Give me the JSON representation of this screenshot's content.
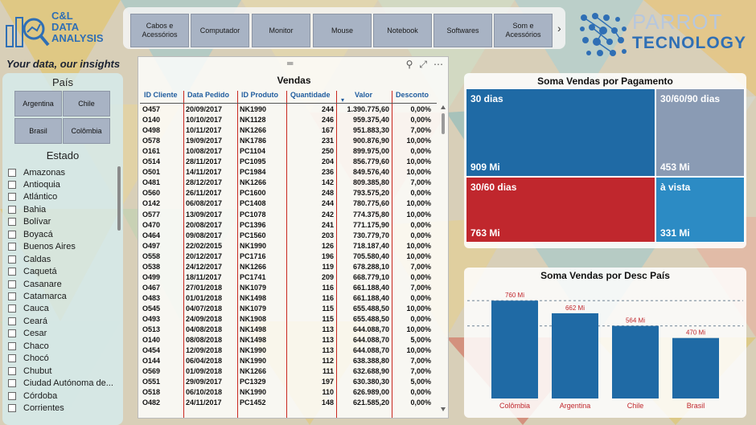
{
  "logo": {
    "lines": [
      "C&L",
      "DATA",
      "ANALYSIS"
    ],
    "tagline": "Your data, our insights"
  },
  "nav": {
    "items": [
      "Cabos e Acessórios",
      "Computador",
      "Monitor",
      "Mouse",
      "Notebook",
      "Softwares",
      "Som e Acessórios"
    ],
    "next_icon": "chevron-right-icon"
  },
  "brand": {
    "line1": "PARROT",
    "line2": "TECNOLOGY"
  },
  "slicer_pais": {
    "title": "País",
    "options": [
      "Argentina",
      "Chile",
      "Brasil",
      "Colômbia"
    ]
  },
  "slicer_estado": {
    "title": "Estado",
    "items": [
      "Amazonas",
      "Antioquia",
      "Atlántico",
      "Bahia",
      "Bolívar",
      "Boyacá",
      "Buenos Aires",
      "Caldas",
      "Caquetá",
      "Casanare",
      "Catamarca",
      "Cauca",
      "Ceará",
      "Cesar",
      "Chaco",
      "Chocó",
      "Chubut",
      "Ciudad Autónoma de...",
      "Córdoba",
      "Corrientes"
    ]
  },
  "vendas": {
    "title": "Vendas",
    "columns": [
      "ID Cliente",
      "Data Pedido",
      "ID Produto",
      "Quantidade",
      "Valor",
      "Desconto"
    ],
    "rows": [
      [
        "O457",
        "20/09/2017",
        "NK1990",
        "244",
        "1.390.775,60",
        "0,00%"
      ],
      [
        "O140",
        "10/10/2017",
        "NK1128",
        "246",
        "959.375,40",
        "0,00%"
      ],
      [
        "O498",
        "10/11/2017",
        "NK1266",
        "167",
        "951.883,30",
        "7,00%"
      ],
      [
        "O578",
        "19/09/2017",
        "NK1786",
        "231",
        "900.876,90",
        "10,00%"
      ],
      [
        "O161",
        "10/08/2017",
        "PC1104",
        "250",
        "899.975,00",
        "0,00%"
      ],
      [
        "O514",
        "28/11/2017",
        "PC1095",
        "204",
        "856.779,60",
        "10,00%"
      ],
      [
        "O501",
        "14/11/2017",
        "PC1984",
        "236",
        "849.576,40",
        "10,00%"
      ],
      [
        "O481",
        "28/12/2017",
        "NK1266",
        "142",
        "809.385,80",
        "7,00%"
      ],
      [
        "O560",
        "26/11/2017",
        "PC1600",
        "248",
        "793.575,20",
        "0,00%"
      ],
      [
        "O142",
        "06/08/2017",
        "PC1408",
        "244",
        "780.775,60",
        "10,00%"
      ],
      [
        "O577",
        "13/09/2017",
        "PC1078",
        "242",
        "774.375,80",
        "10,00%"
      ],
      [
        "O470",
        "20/08/2017",
        "PC1396",
        "241",
        "771.175,90",
        "0,00%"
      ],
      [
        "O464",
        "09/08/2017",
        "PC1560",
        "203",
        "730.779,70",
        "0,00%"
      ],
      [
        "O497",
        "22/02/2015",
        "NK1990",
        "126",
        "718.187,40",
        "10,00%"
      ],
      [
        "O558",
        "20/12/2017",
        "PC1716",
        "196",
        "705.580,40",
        "10,00%"
      ],
      [
        "O538",
        "24/12/2017",
        "NK1266",
        "119",
        "678.288,10",
        "7,00%"
      ],
      [
        "O499",
        "18/11/2017",
        "PC1741",
        "209",
        "668.779,10",
        "0,00%"
      ],
      [
        "O467",
        "27/01/2018",
        "NK1079",
        "116",
        "661.188,40",
        "7,00%"
      ],
      [
        "O483",
        "01/01/2018",
        "NK1498",
        "116",
        "661.188,40",
        "0,00%"
      ],
      [
        "O545",
        "04/07/2018",
        "NK1079",
        "115",
        "655.488,50",
        "10,00%"
      ],
      [
        "O493",
        "24/09/2018",
        "NK1908",
        "115",
        "655.488,50",
        "0,00%"
      ],
      [
        "O513",
        "04/08/2018",
        "NK1498",
        "113",
        "644.088,70",
        "10,00%"
      ],
      [
        "O140",
        "08/08/2018",
        "NK1498",
        "113",
        "644.088,70",
        "5,00%"
      ],
      [
        "O454",
        "12/09/2018",
        "NK1990",
        "113",
        "644.088,70",
        "10,00%"
      ],
      [
        "O144",
        "06/04/2018",
        "NK1990",
        "112",
        "638.388,80",
        "7,00%"
      ],
      [
        "O569",
        "01/09/2018",
        "NK1266",
        "111",
        "632.688,90",
        "7,00%"
      ],
      [
        "O551",
        "29/09/2017",
        "PC1329",
        "197",
        "630.380,30",
        "5,00%"
      ],
      [
        "O518",
        "06/10/2018",
        "NK1990",
        "110",
        "626.989,00",
        "0,00%"
      ],
      [
        "O482",
        "24/11/2017",
        "PC1452",
        "148",
        "621.585,20",
        "0,00%"
      ]
    ]
  },
  "pagamento": {
    "title": "Soma Vendas por Pagamento",
    "tiles": [
      {
        "label": "30 dias",
        "value": "909 Mi",
        "color": "#1f6aa5"
      },
      {
        "label": "30/60/90 dias",
        "value": "453 Mi",
        "color": "#8a9bb4"
      },
      {
        "label": "30/60 dias",
        "value": "763 Mi",
        "color": "#c0272d"
      },
      {
        "label": "à vista",
        "value": "331 Mi",
        "color": "#2c8bc4"
      }
    ]
  },
  "chart_data": {
    "type": "bar",
    "title": "Soma Vendas por Desc País",
    "categories": [
      "Colômbia",
      "Argentina",
      "Chile",
      "Brasil"
    ],
    "values": [
      760,
      662,
      564,
      470
    ],
    "data_labels": [
      "760 Mi",
      "662 Mi",
      "564 Mi",
      "470 Mi"
    ],
    "bar_color": "#1f6aa5",
    "label_color": "#c0272d",
    "reference_lines": [
      760,
      564
    ],
    "ylim": [
      0,
      880
    ]
  }
}
